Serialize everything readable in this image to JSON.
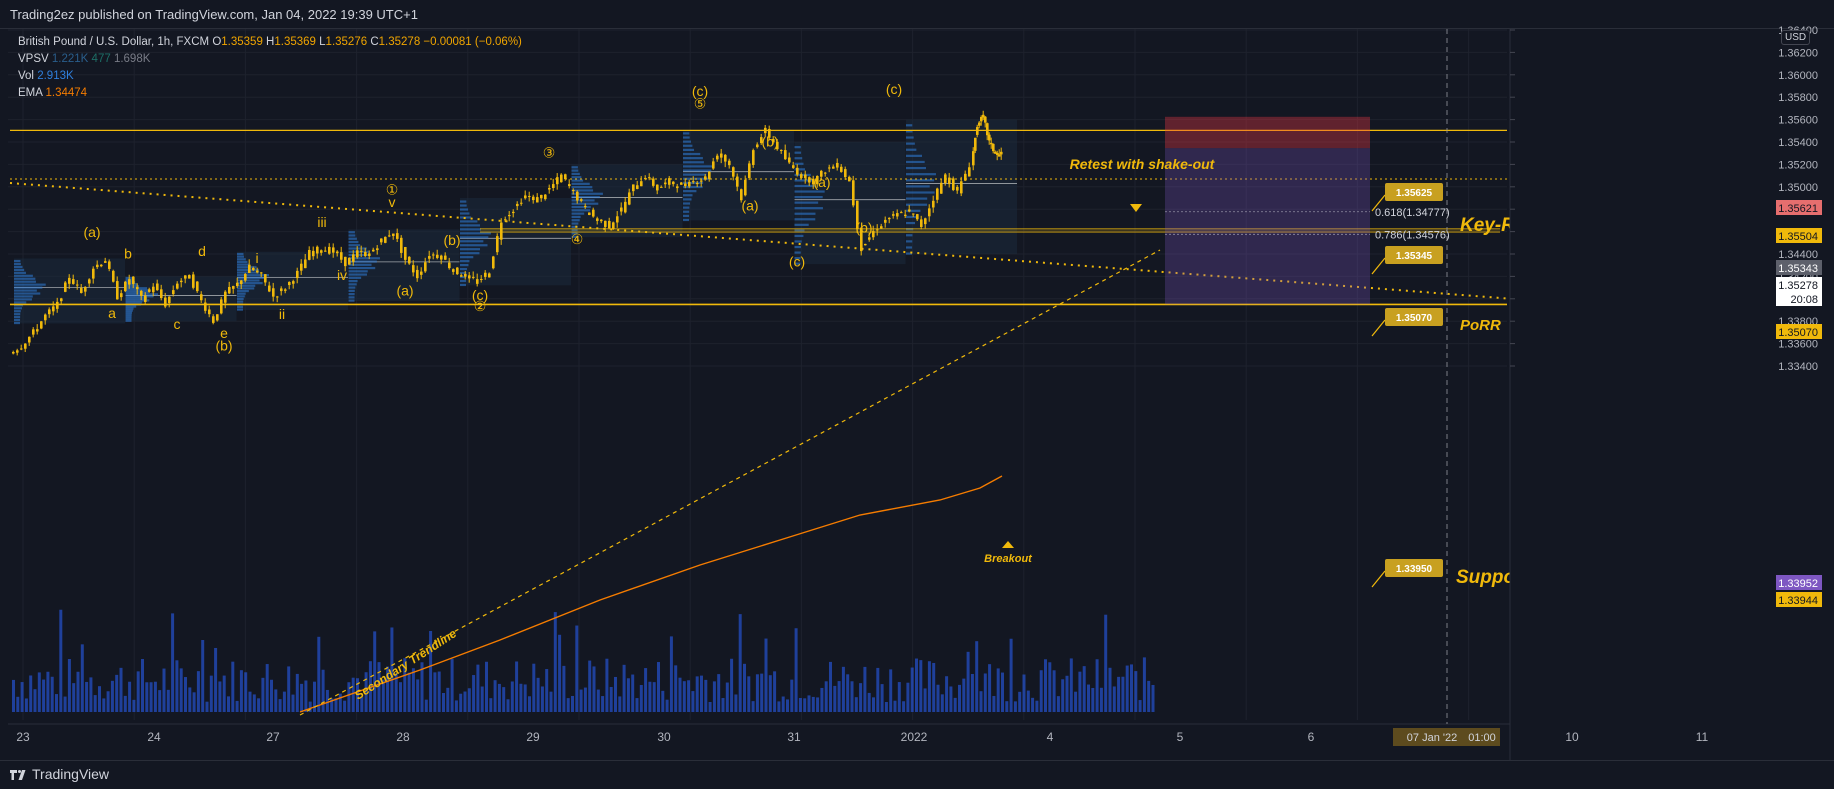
{
  "publisher_line": "Trading2ez published on TradingView.com, Jan 04, 2022 19:39 UTC+1",
  "legend": {
    "symbol": "British Pound / U.S. Dollar, 1h, FXCM",
    "o_label": "O",
    "o_val": "1.35359",
    "h_label": "H",
    "h_val": "1.35369",
    "l_label": "L",
    "l_val": "1.35276",
    "c_label": "C",
    "c_val": "1.35278",
    "change": "−0.00081 (−0.06%)",
    "vpsv_label": "VPSV",
    "vpsv_v1": "1.221K",
    "vpsv_v2": "477",
    "vpsv_v3": "1.698K",
    "vol_label": "Vol",
    "vol_val": "2.913K",
    "ema_label": "EMA",
    "ema_val": "1.34474"
  },
  "price_scale": {
    "currency": "USD",
    "ticks": [
      "1.36400",
      "1.36200",
      "1.36000",
      "1.35800",
      "1.35600",
      "1.35400",
      "1.35200",
      "1.35000",
      "1.34800",
      "1.34600",
      "1.34400",
      "1.34200",
      "1.34000",
      "1.33800",
      "1.33600",
      "1.33400"
    ],
    "badges": [
      {
        "text": "1.35621",
        "color": "#e66e6e",
        "fg": "#131722"
      },
      {
        "text": "1.35504",
        "color": "#f0b90b",
        "fg": "#131722"
      },
      {
        "text": "1.35343",
        "color": "#5d606b",
        "fg": "#ffffff"
      },
      {
        "text": "1.35278",
        "color": "#ffffff",
        "fg": "#131722"
      },
      {
        "text": "20:08",
        "color": "#ffffff",
        "fg": "#131722"
      },
      {
        "text": "1.35070",
        "color": "#f0b90b",
        "fg": "#131722"
      },
      {
        "text": "1.33952",
        "color": "#7e57c2",
        "fg": "#ffffff"
      },
      {
        "text": "1.33944",
        "color": "#f0b90b",
        "fg": "#131722"
      }
    ]
  },
  "time_scale": {
    "labels": [
      "23",
      "24",
      "27",
      "28",
      "29",
      "30",
      "31",
      "2022",
      "4",
      "5",
      "6",
      "07 Jan '22",
      "01:00",
      "10",
      "11"
    ]
  },
  "annotations": {
    "retest": "Retest with shake-out",
    "key_resistance": "Key-Resistance",
    "porr": "PoRR",
    "support_target": "Support and Target-Zone",
    "secondary_trendline": "Secondary Trendline",
    "breakout": "Breakout",
    "fib_618": "0.618(1.34777)",
    "fib_786": "0.786(1.34576)",
    "callouts": [
      "1.35625",
      "1.35345",
      "1.35070",
      "1.33950"
    ],
    "wave_labels": [
      {
        "t": "(a)",
        "p": 1.3455,
        "tpos": 60
      },
      {
        "t": "b",
        "p": 1.3436,
        "tpos": 96
      },
      {
        "t": "a",
        "p": 1.3383,
        "tpos": 80
      },
      {
        "t": "c",
        "p": 1.3373,
        "tpos": 145
      },
      {
        "t": "d",
        "p": 1.3438,
        "tpos": 170
      },
      {
        "t": "e",
        "p": 1.3365,
        "tpos": 192
      },
      {
        "t": "(b)",
        "p": 1.3354,
        "tpos": 192
      },
      {
        "t": "i",
        "p": 1.3432,
        "tpos": 225
      },
      {
        "t": "ii",
        "p": 1.3382,
        "tpos": 250
      },
      {
        "t": "iii",
        "p": 1.3464,
        "tpos": 290
      },
      {
        "t": "iv",
        "p": 1.3417,
        "tpos": 310
      },
      {
        "t": "v",
        "p": 1.3482,
        "tpos": 360
      },
      {
        "t": "①",
        "p": 1.3493,
        "tpos": 360
      },
      {
        "t": "(a)",
        "p": 1.3403,
        "tpos": 373
      },
      {
        "t": "(b)",
        "p": 1.3448,
        "tpos": 420
      },
      {
        "t": "(c)",
        "p": 1.3399,
        "tpos": 448
      },
      {
        "t": "②",
        "p": 1.3389,
        "tpos": 448
      },
      {
        "t": "③",
        "p": 1.3526,
        "tpos": 517
      },
      {
        "t": "④",
        "p": 1.3449,
        "tpos": 545
      },
      {
        "t": "(c)",
        "p": 1.3581,
        "tpos": 668
      },
      {
        "t": "⑤",
        "p": 1.357,
        "tpos": 668
      },
      {
        "t": "(b)",
        "p": 1.3536,
        "tpos": 738
      },
      {
        "t": "(a)",
        "p": 1.3479,
        "tpos": 718
      },
      {
        "t": "(a)",
        "p": 1.35,
        "tpos": 790
      },
      {
        "t": "(b)",
        "p": 1.3459,
        "tpos": 832
      },
      {
        "t": "(c)",
        "p": 1.3429,
        "tpos": 765
      },
      {
        "t": "(c)",
        "p": 1.3583,
        "tpos": 862
      }
    ]
  },
  "footer_brand": "TradingView",
  "colors": {
    "background": "#131722",
    "grid": "#1e222d",
    "candle": "#f0b90b",
    "volume": "#2962ff",
    "ema": "#f57c00",
    "level": "#f0b90b",
    "stop_zone": "#f23645",
    "target_zone": "#7e57c2"
  }
}
